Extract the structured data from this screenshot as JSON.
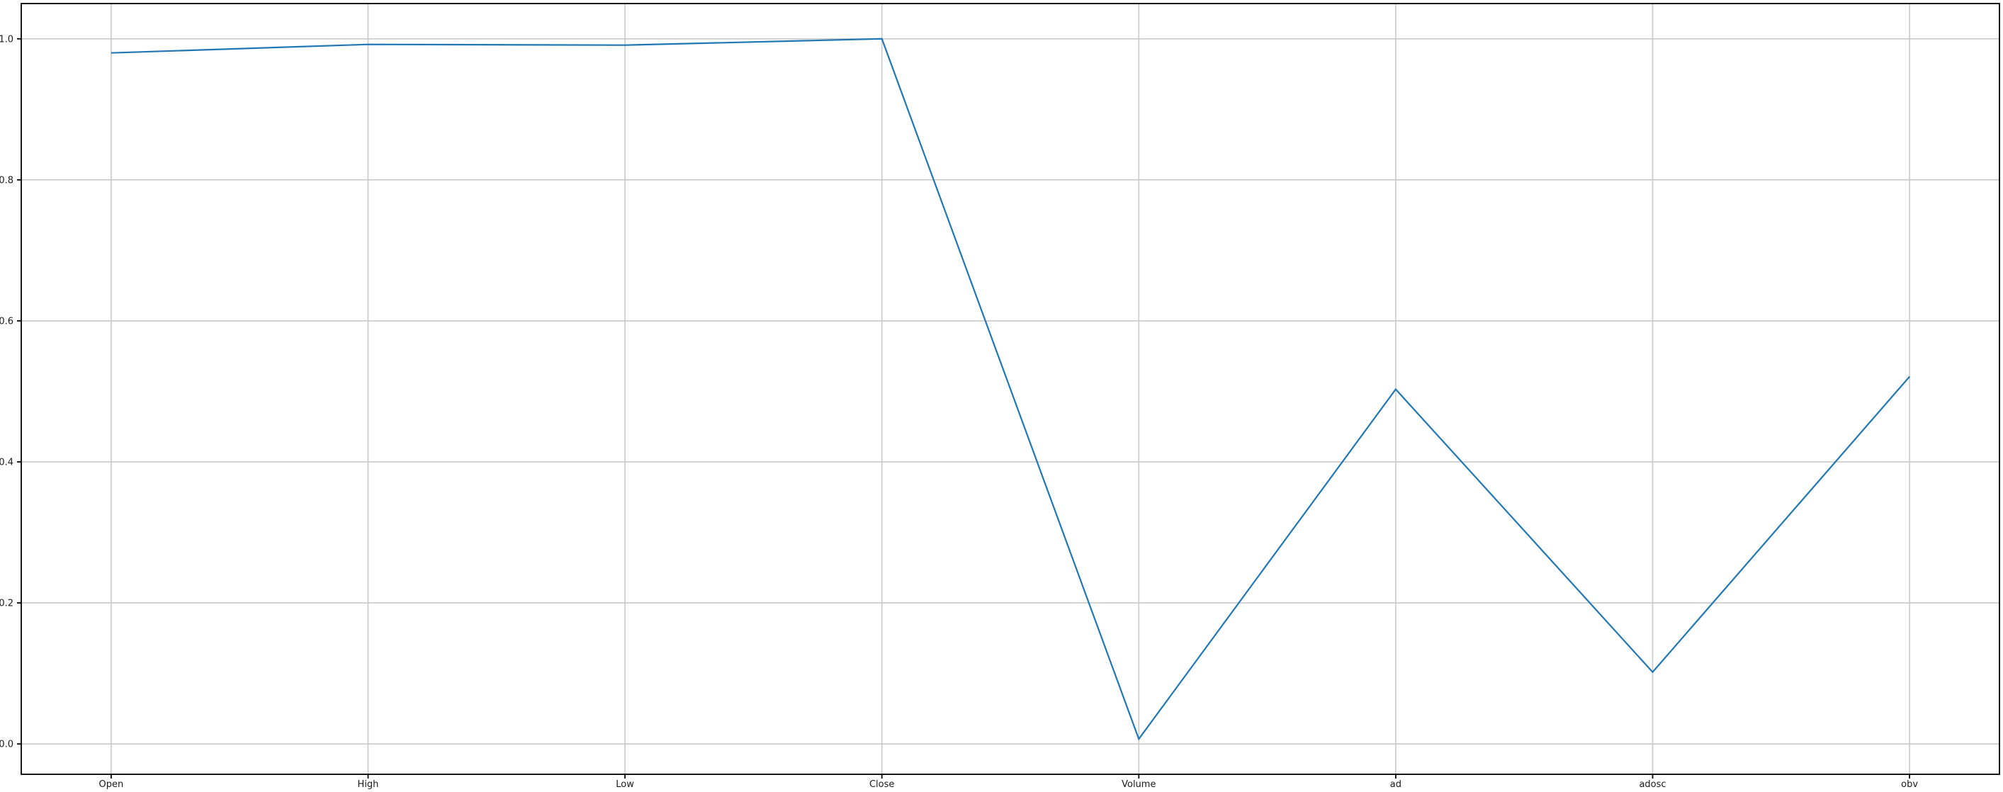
{
  "page": {
    "background_color": "#ffffff"
  },
  "chart_data": {
    "type": "line",
    "categories": [
      "Open",
      "High",
      "Low",
      "Close",
      "Volume",
      "ad",
      "adosc",
      "obv"
    ],
    "values": [
      0.98,
      0.992,
      0.991,
      1.0,
      0.007,
      0.503,
      0.102,
      0.521
    ],
    "ytick_values": [
      0.0,
      0.2,
      0.4,
      0.6,
      0.8,
      1.0
    ],
    "ytick_labels": [
      "0.0",
      "0.2",
      "0.4",
      "0.6",
      "0.8",
      "1.0"
    ],
    "ylim": [
      -0.043,
      1.05
    ],
    "grid": true,
    "legend_position": "none",
    "line_color": "#1f77b4",
    "grid_color": "#c9c9c9",
    "spine_color": "#000000",
    "tick_label_color": "#1a1a1a"
  }
}
